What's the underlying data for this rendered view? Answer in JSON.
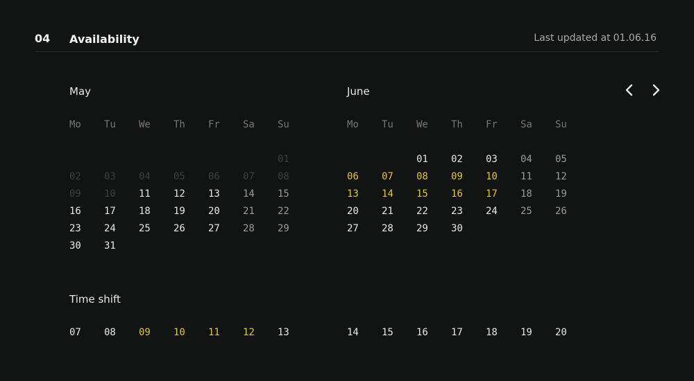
{
  "section": {
    "number": "04",
    "title": "Availability",
    "updated_label": "Last updated at",
    "updated_date": "01.06.16"
  },
  "weekdays": [
    "Mo",
    "Tu",
    "We",
    "Th",
    "Fr",
    "Sa",
    "Su"
  ],
  "may": {
    "name": "May",
    "rows": [
      [
        {
          "d": ""
        },
        {
          "d": ""
        },
        {
          "d": ""
        },
        {
          "d": ""
        },
        {
          "d": ""
        },
        {
          "d": ""
        },
        {
          "d": "01",
          "s": "faint"
        }
      ],
      [
        {
          "d": "02",
          "s": "faint"
        },
        {
          "d": "03",
          "s": "faint"
        },
        {
          "d": "04",
          "s": "faint"
        },
        {
          "d": "05",
          "s": "faint"
        },
        {
          "d": "06",
          "s": "faint"
        },
        {
          "d": "07",
          "s": "faint"
        },
        {
          "d": "08",
          "s": "faint"
        }
      ],
      [
        {
          "d": "09",
          "s": "faint"
        },
        {
          "d": "10",
          "s": "faint"
        },
        {
          "d": "11"
        },
        {
          "d": "12"
        },
        {
          "d": "13"
        },
        {
          "d": "14",
          "s": "weekend"
        },
        {
          "d": "15",
          "s": "weekend"
        }
      ],
      [
        {
          "d": "16"
        },
        {
          "d": "17"
        },
        {
          "d": "18"
        },
        {
          "d": "19"
        },
        {
          "d": "20"
        },
        {
          "d": "21",
          "s": "weekend"
        },
        {
          "d": "22",
          "s": "weekend"
        }
      ],
      [
        {
          "d": "23"
        },
        {
          "d": "24"
        },
        {
          "d": "25"
        },
        {
          "d": "26"
        },
        {
          "d": "27"
        },
        {
          "d": "28",
          "s": "weekend"
        },
        {
          "d": "29",
          "s": "weekend"
        }
      ],
      [
        {
          "d": "30"
        },
        {
          "d": "31"
        },
        {
          "d": ""
        },
        {
          "d": ""
        },
        {
          "d": ""
        },
        {
          "d": ""
        },
        {
          "d": ""
        }
      ]
    ]
  },
  "june": {
    "name": "June",
    "rows": [
      [
        {
          "d": ""
        },
        {
          "d": ""
        },
        {
          "d": "01"
        },
        {
          "d": "02"
        },
        {
          "d": "03"
        },
        {
          "d": "04",
          "s": "weekend"
        },
        {
          "d": "05",
          "s": "weekend"
        }
      ],
      [
        {
          "d": "06",
          "s": "hl"
        },
        {
          "d": "07",
          "s": "hl"
        },
        {
          "d": "08",
          "s": "hl"
        },
        {
          "d": "09",
          "s": "hl"
        },
        {
          "d": "10",
          "s": "hl"
        },
        {
          "d": "11",
          "s": "weekend"
        },
        {
          "d": "12",
          "s": "weekend"
        }
      ],
      [
        {
          "d": "13",
          "s": "hl"
        },
        {
          "d": "14",
          "s": "hl"
        },
        {
          "d": "15",
          "s": "hl"
        },
        {
          "d": "16",
          "s": "hl"
        },
        {
          "d": "17",
          "s": "hl"
        },
        {
          "d": "18",
          "s": "weekend"
        },
        {
          "d": "19",
          "s": "weekend"
        }
      ],
      [
        {
          "d": "20"
        },
        {
          "d": "21"
        },
        {
          "d": "22"
        },
        {
          "d": "23"
        },
        {
          "d": "24"
        },
        {
          "d": "25",
          "s": "weekend"
        },
        {
          "d": "26",
          "s": "weekend"
        }
      ],
      [
        {
          "d": "27"
        },
        {
          "d": "28"
        },
        {
          "d": "29"
        },
        {
          "d": "30"
        },
        {
          "d": ""
        },
        {
          "d": ""
        },
        {
          "d": ""
        }
      ]
    ]
  },
  "time_shift": {
    "title": "Time shift",
    "left": [
      {
        "d": "07"
      },
      {
        "d": "08"
      },
      {
        "d": "09",
        "s": "hl"
      },
      {
        "d": "10",
        "s": "hl"
      },
      {
        "d": "11",
        "s": "hl"
      },
      {
        "d": "12",
        "s": "hl"
      },
      {
        "d": "13"
      }
    ],
    "right": [
      {
        "d": "14"
      },
      {
        "d": "15"
      },
      {
        "d": "16"
      },
      {
        "d": "17"
      },
      {
        "d": "18"
      },
      {
        "d": "19"
      },
      {
        "d": "20"
      }
    ]
  },
  "icons": {
    "prev": "chevron-left-icon",
    "next": "chevron-right-icon"
  },
  "colors": {
    "background": "#121313",
    "highlight": "#e3c44a",
    "text": "#e8e8e8",
    "muted": "#6b6b6b"
  }
}
